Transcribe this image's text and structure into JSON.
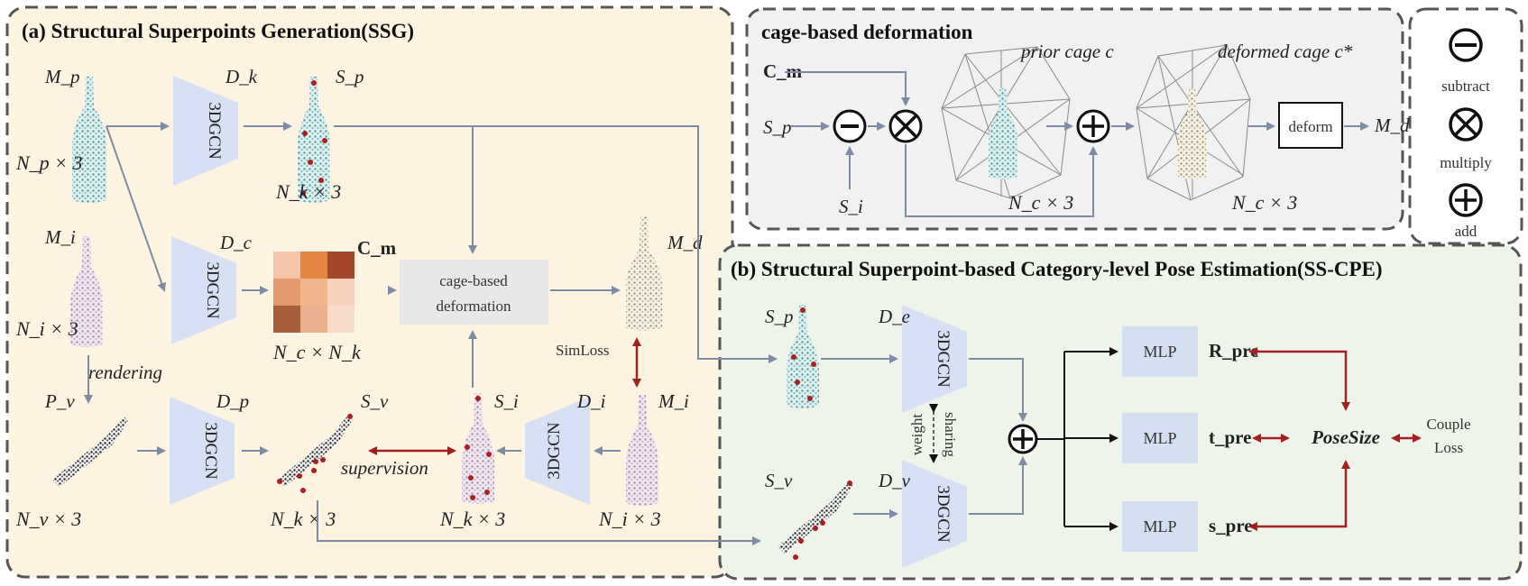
{
  "panel_a": {
    "title": "(a) Structural Superpoints Generation(SSG)",
    "Mp_label": "M_p",
    "Np_dim": "N_p × 3",
    "Dk_label": "D_k",
    "Sp_label": "S_p",
    "Nk_dim_top": "N_k × 3",
    "Mi_label": "M_i",
    "Ni_dim": "N_i × 3",
    "Dc_label": "D_c",
    "Cm_label": "C_m",
    "NcNk_dim": "N_c × N_k",
    "cage_box": [
      "cage-based",
      "deformation"
    ],
    "Md_label": "M_d",
    "simloss": "SimLoss",
    "rendering": "rendering",
    "Pv_label": "P_v",
    "Nv_dim": "N_v × 3",
    "Dp_label": "D_p",
    "Sv_label": "S_v",
    "Nk_dim_bottom": "N_k × 3",
    "supervision": "supervision",
    "Si_label": "S_i",
    "Nk_dim_mid": "N_k × 3",
    "Di_label": "D_i",
    "Mi2_label": "M_i",
    "Ni2_dim": "N_i × 3",
    "net_label": "3DGCN"
  },
  "panel_cage": {
    "title": "cage-based deformation",
    "Cm_label": "C_m",
    "Sp_label": "S_p",
    "Si_label": "S_i",
    "prior_cage": "prior cage c",
    "deformed_cage": "deformed cage c*",
    "Nc_dim_1": "N_c × 3",
    "Nc_dim_2": "N_c × 3",
    "deform_box": "deform",
    "Md_label": "M_d"
  },
  "legend": {
    "subtract": "subtract",
    "multiply": "multiply",
    "add": "add"
  },
  "panel_b": {
    "title": "(b) Structural Superpoint-based Category-level Pose Estimation(SS-CPE)",
    "Sp_label": "S_p",
    "De_label": "D_e",
    "Sv_label": "S_v",
    "Dv_label": "D_v",
    "weight_sharing": [
      "weight",
      "sharing"
    ],
    "mlp": "MLP",
    "R_pre": "R_pre",
    "t_pre": "t_pre",
    "s_pre": "s_pre",
    "posesize": "PoseSize",
    "couple_loss": [
      "Couple",
      "Loss"
    ],
    "net_label": "3DGCN"
  },
  "colors": {
    "panel_a_bg": "#fcf3e0",
    "panel_cage_bg": "#f1f1f1",
    "panel_b_bg": "#eef4ea",
    "arrow_gray": "#7f8aa3",
    "arrow_red": "#a32020",
    "trapezoid": "#d7e0f4",
    "teal_points": "#5aa6a6",
    "purple_points": "#b59ab4",
    "beige_points": "#b8b08a"
  }
}
